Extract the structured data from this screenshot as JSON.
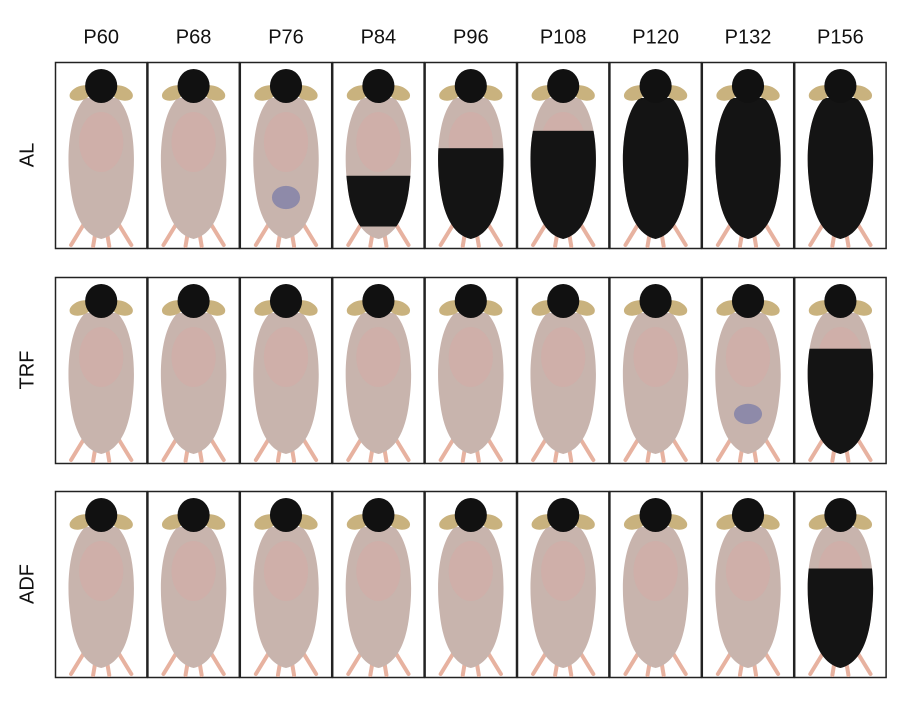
{
  "columns": [
    "P60",
    "P68",
    "P76",
    "P84",
    "P96",
    "P108",
    "P120",
    "P132",
    "P156"
  ],
  "rows": [
    "AL",
    "TRF",
    "ADF"
  ]
}
